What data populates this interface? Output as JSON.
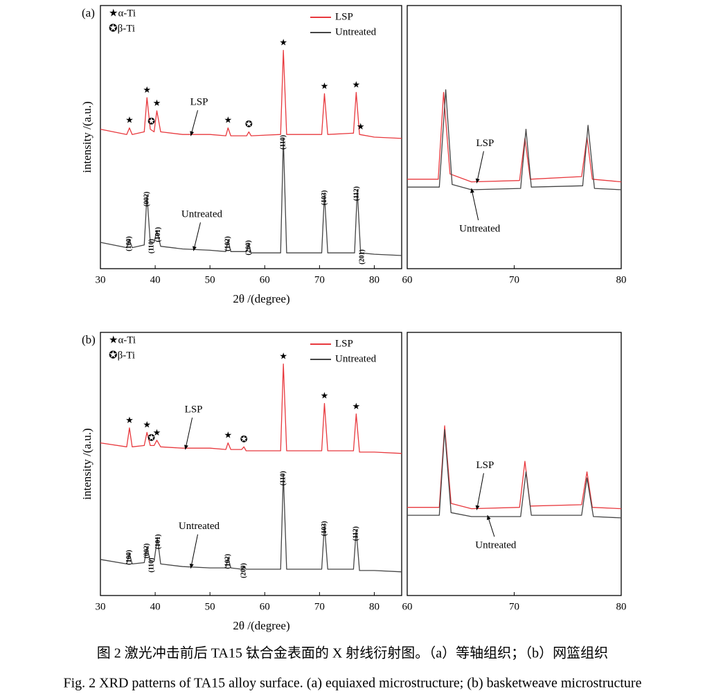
{
  "chart_data": [
    {
      "type": "line",
      "label": "(a)",
      "xlabel": "2θ /(degree)",
      "ylabel": "intensity /(a.u.)",
      "xlim": [
        30,
        85
      ],
      "xticks": [
        30,
        40,
        50,
        60,
        70,
        80
      ],
      "ylim": [
        0,
        100
      ],
      "phase_legend": [
        "★α-Ti",
        "✪β-Ti"
      ],
      "series": [
        {
          "name": "LSP",
          "color": "#e8383d",
          "x": [
            30,
            34.8,
            35.3,
            35.8,
            38.0,
            38.5,
            39.1,
            39.8,
            40.3,
            41,
            45,
            50,
            52.9,
            53.3,
            53.8,
            56.7,
            57.1,
            57.5,
            62.9,
            63.4,
            64,
            70.4,
            70.9,
            71.5,
            76.2,
            76.7,
            77.3,
            80,
            85
          ],
          "values": [
            53,
            51,
            53.5,
            51,
            52,
            65,
            53,
            52,
            60,
            52,
            51,
            51,
            50.5,
            53.5,
            50.5,
            50.5,
            52,
            50.5,
            51,
            83,
            51,
            51,
            66.5,
            51,
            51.5,
            67,
            51,
            50,
            49.5
          ]
        },
        {
          "name": "Untreated",
          "color": "#444444",
          "x": [
            30,
            34.8,
            35.3,
            35.8,
            38.0,
            38.5,
            39.1,
            39.8,
            40.3,
            41,
            45,
            50,
            52.9,
            53.3,
            53.8,
            56.7,
            57.1,
            57.5,
            62.9,
            63.4,
            64,
            70.4,
            70.9,
            71.5,
            76.4,
            76.9,
            77.5,
            80,
            85
          ],
          "values": [
            10,
            8,
            11,
            8,
            9,
            28,
            10,
            10,
            14.5,
            8.5,
            7.5,
            7,
            6.5,
            11,
            6.5,
            6.5,
            9.5,
            6,
            6,
            49.5,
            6,
            6,
            28.5,
            6,
            6,
            30,
            6,
            5.5,
            5
          ]
        }
      ],
      "markers": [
        {
          "text": "★",
          "x": 35.3
        },
        {
          "text": "★",
          "x": 38.5
        },
        {
          "text": "✪",
          "x": 39.3
        },
        {
          "text": "★",
          "x": 40.3
        },
        {
          "text": "★",
          "x": 53.3
        },
        {
          "text": "✪",
          "x": 57.1
        },
        {
          "text": "★",
          "x": 63.4
        },
        {
          "text": "★",
          "x": 70.9
        },
        {
          "text": "★",
          "x": 76.7
        },
        {
          "text": "★",
          "x": 77.5
        }
      ],
      "peak_labels": [
        {
          "text": "(100)",
          "x": 35.3
        },
        {
          "text": "(002)",
          "x": 38.5
        },
        {
          "text": "(110)",
          "x": 39.4
        },
        {
          "text": "(101)",
          "x": 40.6
        },
        {
          "text": "(102)",
          "x": 53.3
        },
        {
          "text": "(200)",
          "x": 57.1
        },
        {
          "text": "(110)",
          "x": 63.4
        },
        {
          "text": "(103)",
          "x": 70.9
        },
        {
          "text": "(112)",
          "x": 76.8
        },
        {
          "text": "(201)",
          "x": 77.8
        }
      ]
    },
    {
      "type": "line",
      "xlim": [
        60,
        80
      ],
      "xticks": [
        60,
        70,
        80
      ],
      "ylim": [
        0,
        100
      ],
      "series": [
        {
          "name": "LSP",
          "color": "#e8383d",
          "x": [
            60,
            62.9,
            63.4,
            64,
            66,
            70.5,
            71,
            71.5,
            76.3,
            76.8,
            77.3,
            80
          ],
          "values": [
            34,
            34,
            67,
            36,
            33,
            33.5,
            49.5,
            34,
            35,
            50,
            34,
            33
          ]
        },
        {
          "name": "Untreated",
          "color": "#444444",
          "x": [
            60,
            63.0,
            63.6,
            64.2,
            66,
            70.6,
            71.1,
            71.6,
            76.4,
            76.9,
            77.5,
            80
          ],
          "values": [
            31,
            31,
            68,
            32,
            30,
            30.5,
            53,
            31,
            31.5,
            54.5,
            30.5,
            30
          ]
        }
      ]
    },
    {
      "type": "line",
      "label": "(b)",
      "xlabel": "2θ /(degree)",
      "ylabel": "intensity /(a.u.)",
      "xlim": [
        30,
        85
      ],
      "xticks": [
        30,
        40,
        50,
        60,
        70,
        80
      ],
      "ylim": [
        0,
        100
      ],
      "phase_legend": [
        "★α-Ti",
        "✪β-Ti"
      ],
      "series": [
        {
          "name": "LSP",
          "color": "#e8383d",
          "x": [
            30,
            34.8,
            35.3,
            35.8,
            38.0,
            38.5,
            39.1,
            39.8,
            40.3,
            41,
            45,
            50,
            52.9,
            53.3,
            53.8,
            55.8,
            56.2,
            56.6,
            62.9,
            63.4,
            64,
            70.4,
            70.9,
            71.5,
            76.2,
            76.7,
            77.3,
            80,
            85
          ],
          "values": [
            58,
            56.5,
            63.7,
            56.5,
            57,
            62,
            57,
            57,
            59,
            56.5,
            56,
            56,
            55.5,
            58,
            55.5,
            55.5,
            56.5,
            55,
            55,
            88,
            55,
            55,
            73,
            55,
            55,
            69,
            54.5,
            54.5,
            54
          ]
        },
        {
          "name": "Untreated",
          "color": "#444444",
          "x": [
            30,
            34.8,
            35.3,
            35.8,
            38.0,
            38.5,
            39.1,
            39.8,
            40.4,
            41,
            45,
            50,
            52.9,
            53.3,
            53.8,
            55.8,
            56.2,
            56.6,
            62.9,
            63.4,
            64,
            70.4,
            70.9,
            71.5,
            76.2,
            76.7,
            77.3,
            80,
            85
          ],
          "values": [
            13.7,
            12,
            16,
            12,
            12.5,
            18.5,
            13,
            13,
            22,
            12,
            11,
            10.5,
            10.5,
            14.5,
            10.5,
            10,
            11,
            10,
            10,
            46,
            10,
            10,
            27,
            10,
            10,
            25,
            9.5,
            9.5,
            9
          ]
        }
      ],
      "markers": [
        {
          "text": "★",
          "x": 35.3
        },
        {
          "text": "★",
          "x": 38.5
        },
        {
          "text": "✪",
          "x": 39.3
        },
        {
          "text": "★",
          "x": 40.3
        },
        {
          "text": "★",
          "x": 53.3
        },
        {
          "text": "✪",
          "x": 56.2
        },
        {
          "text": "★",
          "x": 63.4
        },
        {
          "text": "★",
          "x": 70.9
        },
        {
          "text": "★",
          "x": 76.7
        }
      ],
      "peak_labels": [
        {
          "text": "(100)",
          "x": 35.3
        },
        {
          "text": "(002)",
          "x": 38.5
        },
        {
          "text": "(110)",
          "x": 39.4
        },
        {
          "text": "(101)",
          "x": 40.6
        },
        {
          "text": "(102)",
          "x": 53.3
        },
        {
          "text": "(200)",
          "x": 56.2
        },
        {
          "text": "(110)",
          "x": 63.4
        },
        {
          "text": "(103)",
          "x": 70.9
        },
        {
          "text": "(112)",
          "x": 76.7
        }
      ]
    },
    {
      "type": "line",
      "xlim": [
        60,
        80
      ],
      "xticks": [
        60,
        70,
        80
      ],
      "ylim": [
        0,
        100
      ],
      "series": [
        {
          "name": "LSP",
          "color": "#e8383d",
          "x": [
            60,
            63.0,
            63.5,
            64.1,
            66,
            70.5,
            71,
            71.5,
            76.3,
            76.8,
            77.3,
            80
          ],
          "values": [
            33.5,
            33.5,
            64.5,
            35,
            33,
            33.5,
            51,
            34,
            34.5,
            47,
            33.5,
            33
          ]
        },
        {
          "name": "Untreated",
          "color": "#444444",
          "x": [
            60,
            63.0,
            63.5,
            64.1,
            66,
            70.6,
            71.1,
            71.6,
            76.3,
            76.8,
            77.4,
            80
          ],
          "values": [
            30.5,
            30.5,
            63,
            31.5,
            30,
            30,
            47,
            30.5,
            30.5,
            44.7,
            30,
            29.5
          ]
        }
      ]
    }
  ],
  "captions": [
    "图 2 激光冲击前后 TA15 钛合金表面的 X 射线衍射图。（a）等轴组织；（b）网篮组织",
    "Fig. 2 XRD patterns of TA15 alloy surface. (a) equiaxed microstructure; (b) basketweave microstructure"
  ]
}
